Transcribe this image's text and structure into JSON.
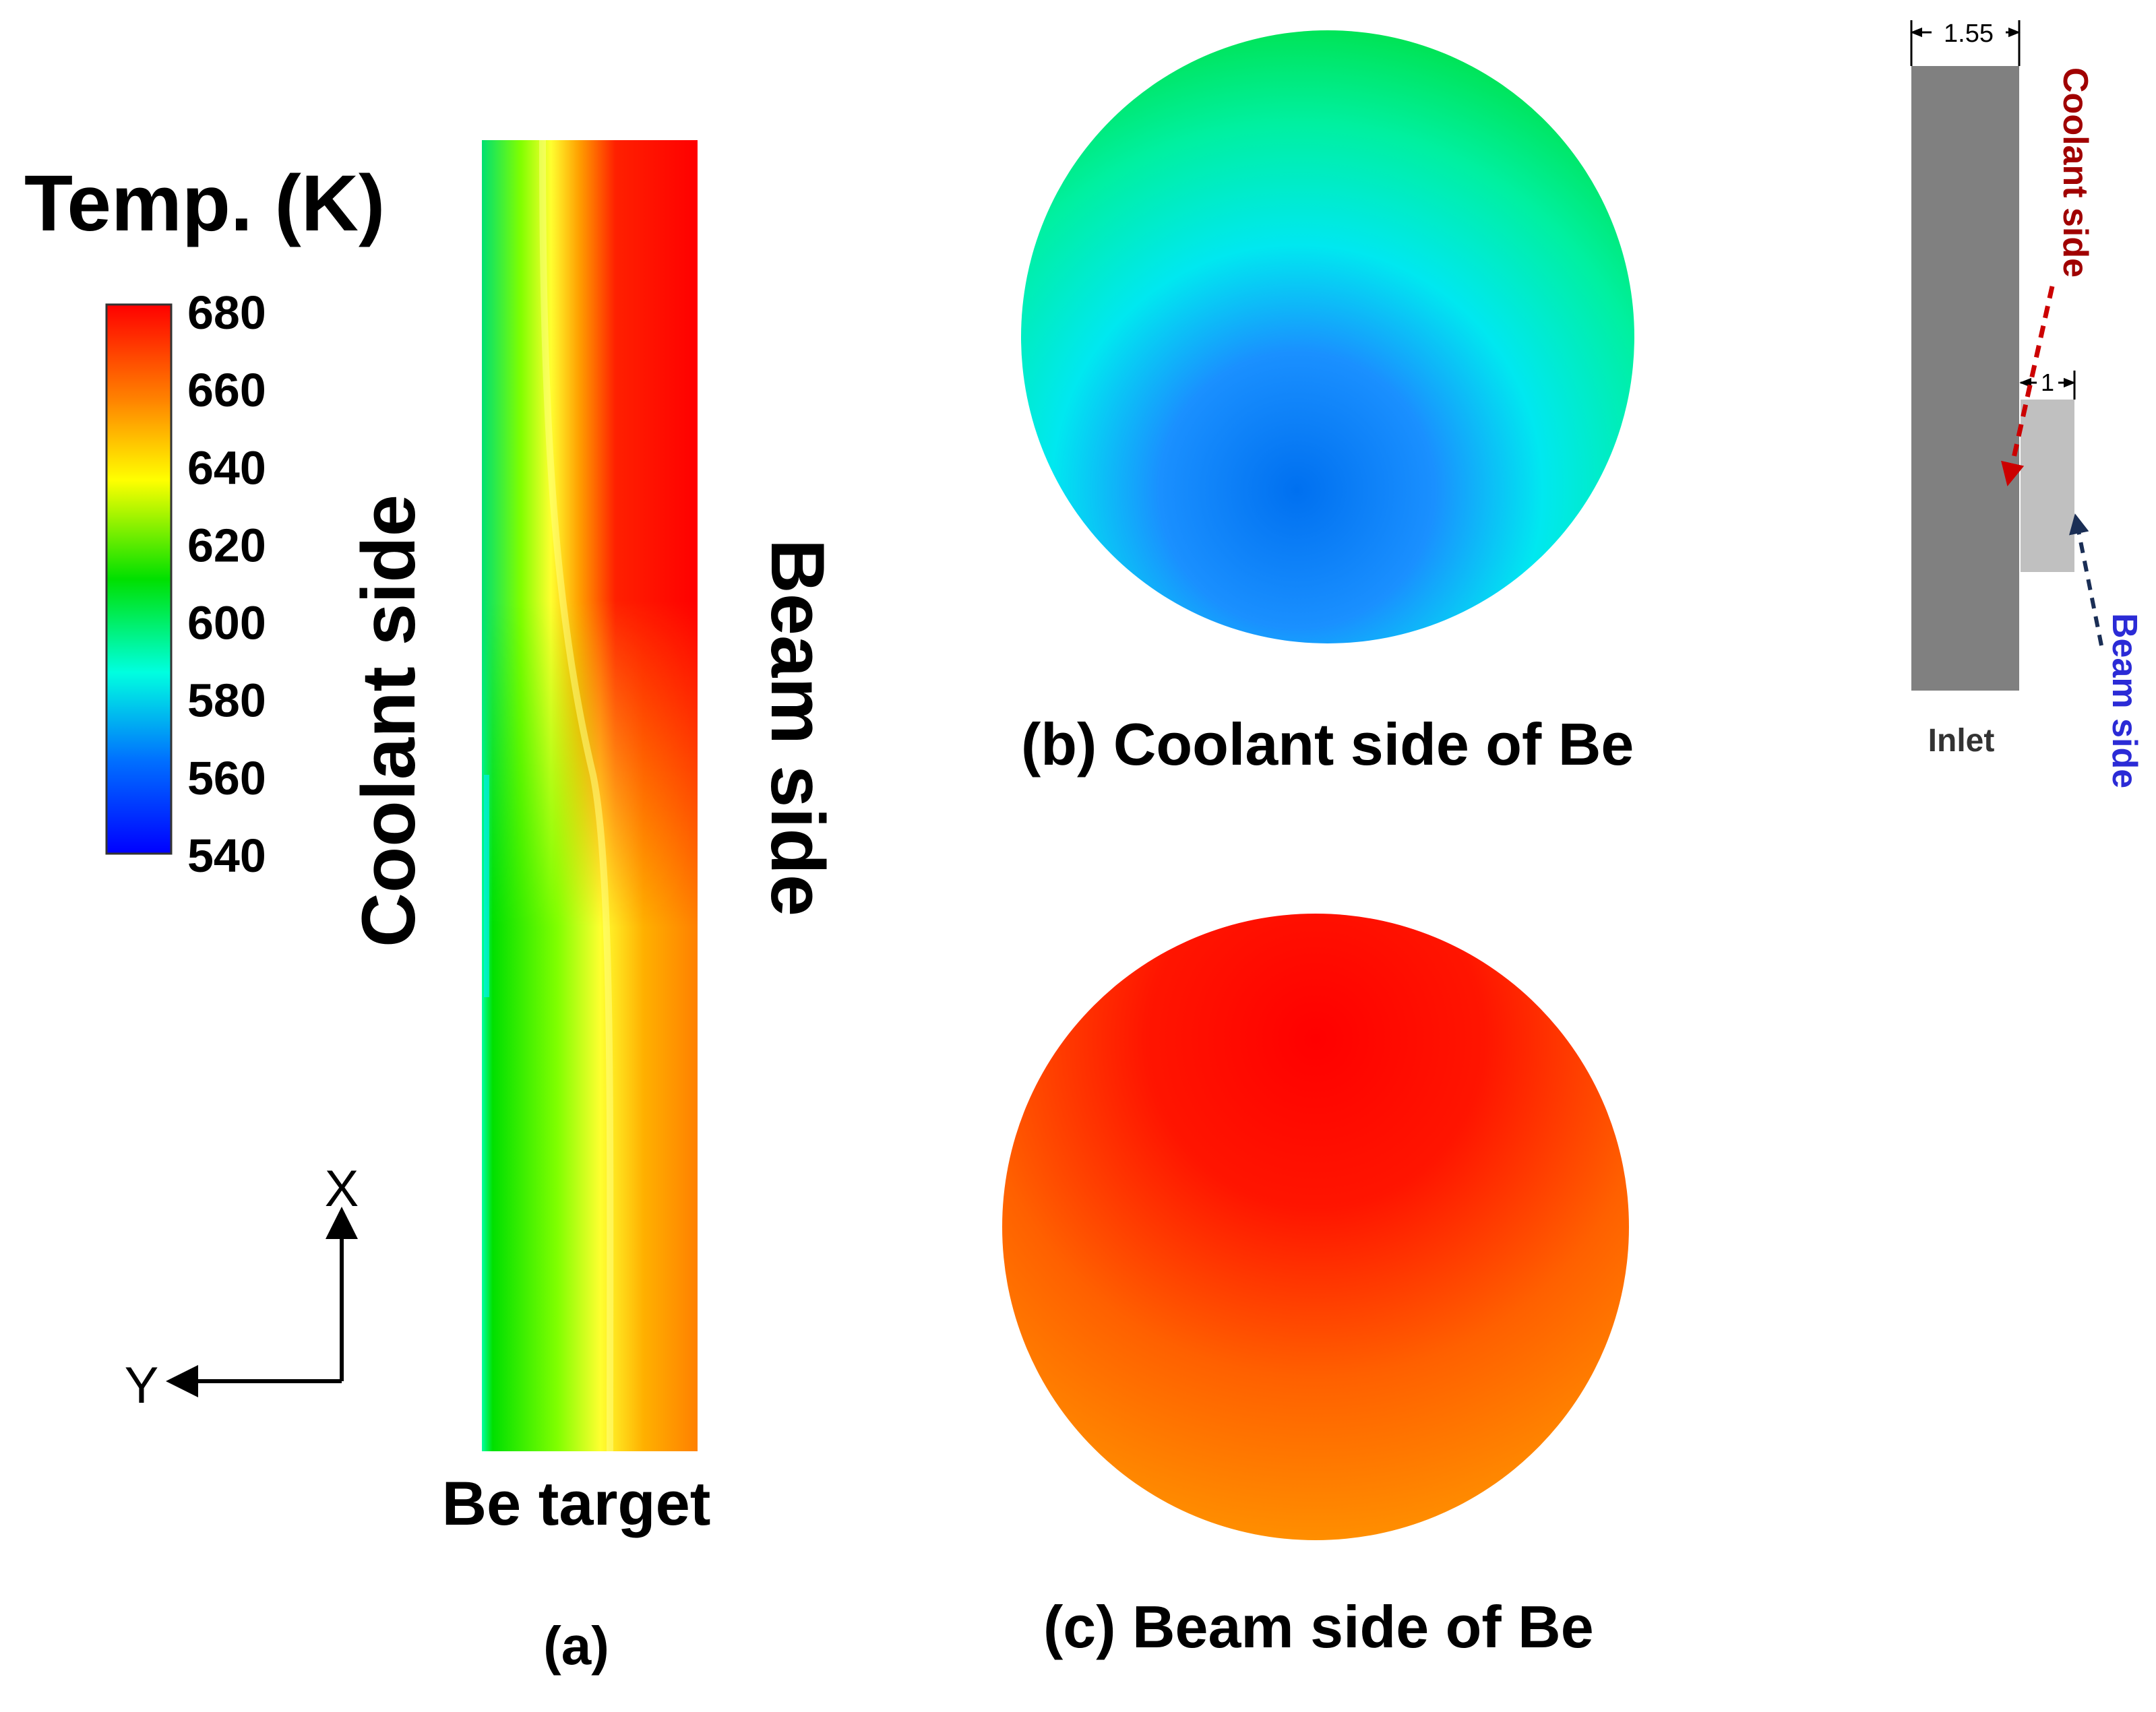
{
  "legend": {
    "title": "Temp. (K)",
    "ticks": [
      "680",
      "660",
      "640",
      "620",
      "600",
      "580",
      "560",
      "540"
    ],
    "min": 540,
    "max": 680,
    "colors": [
      "#ff0000",
      "#ff8000",
      "#ffff00",
      "#00e000",
      "#00ffe0",
      "#0070ff",
      "#0000ff"
    ]
  },
  "panel_a": {
    "coolant_label": "Coolant side",
    "beam_label": "Beam side",
    "target_label": "Be target",
    "caption": "(a)",
    "axis_x": "X",
    "axis_y": "Y"
  },
  "panel_b": {
    "caption": "(b) Coolant side of Be"
  },
  "panel_c": {
    "caption": "(c) Beam side of Be"
  },
  "schematic": {
    "dim_wide": "1.55",
    "dim_narrow": "1",
    "coolant_label": "Coolant side",
    "beam_label": "Beam side",
    "inlet_label": "Inlet",
    "coolant_color": "#a00000",
    "beam_color": "#2b2bd6",
    "block_dark": "#808080",
    "block_light": "#c0c0c0"
  }
}
